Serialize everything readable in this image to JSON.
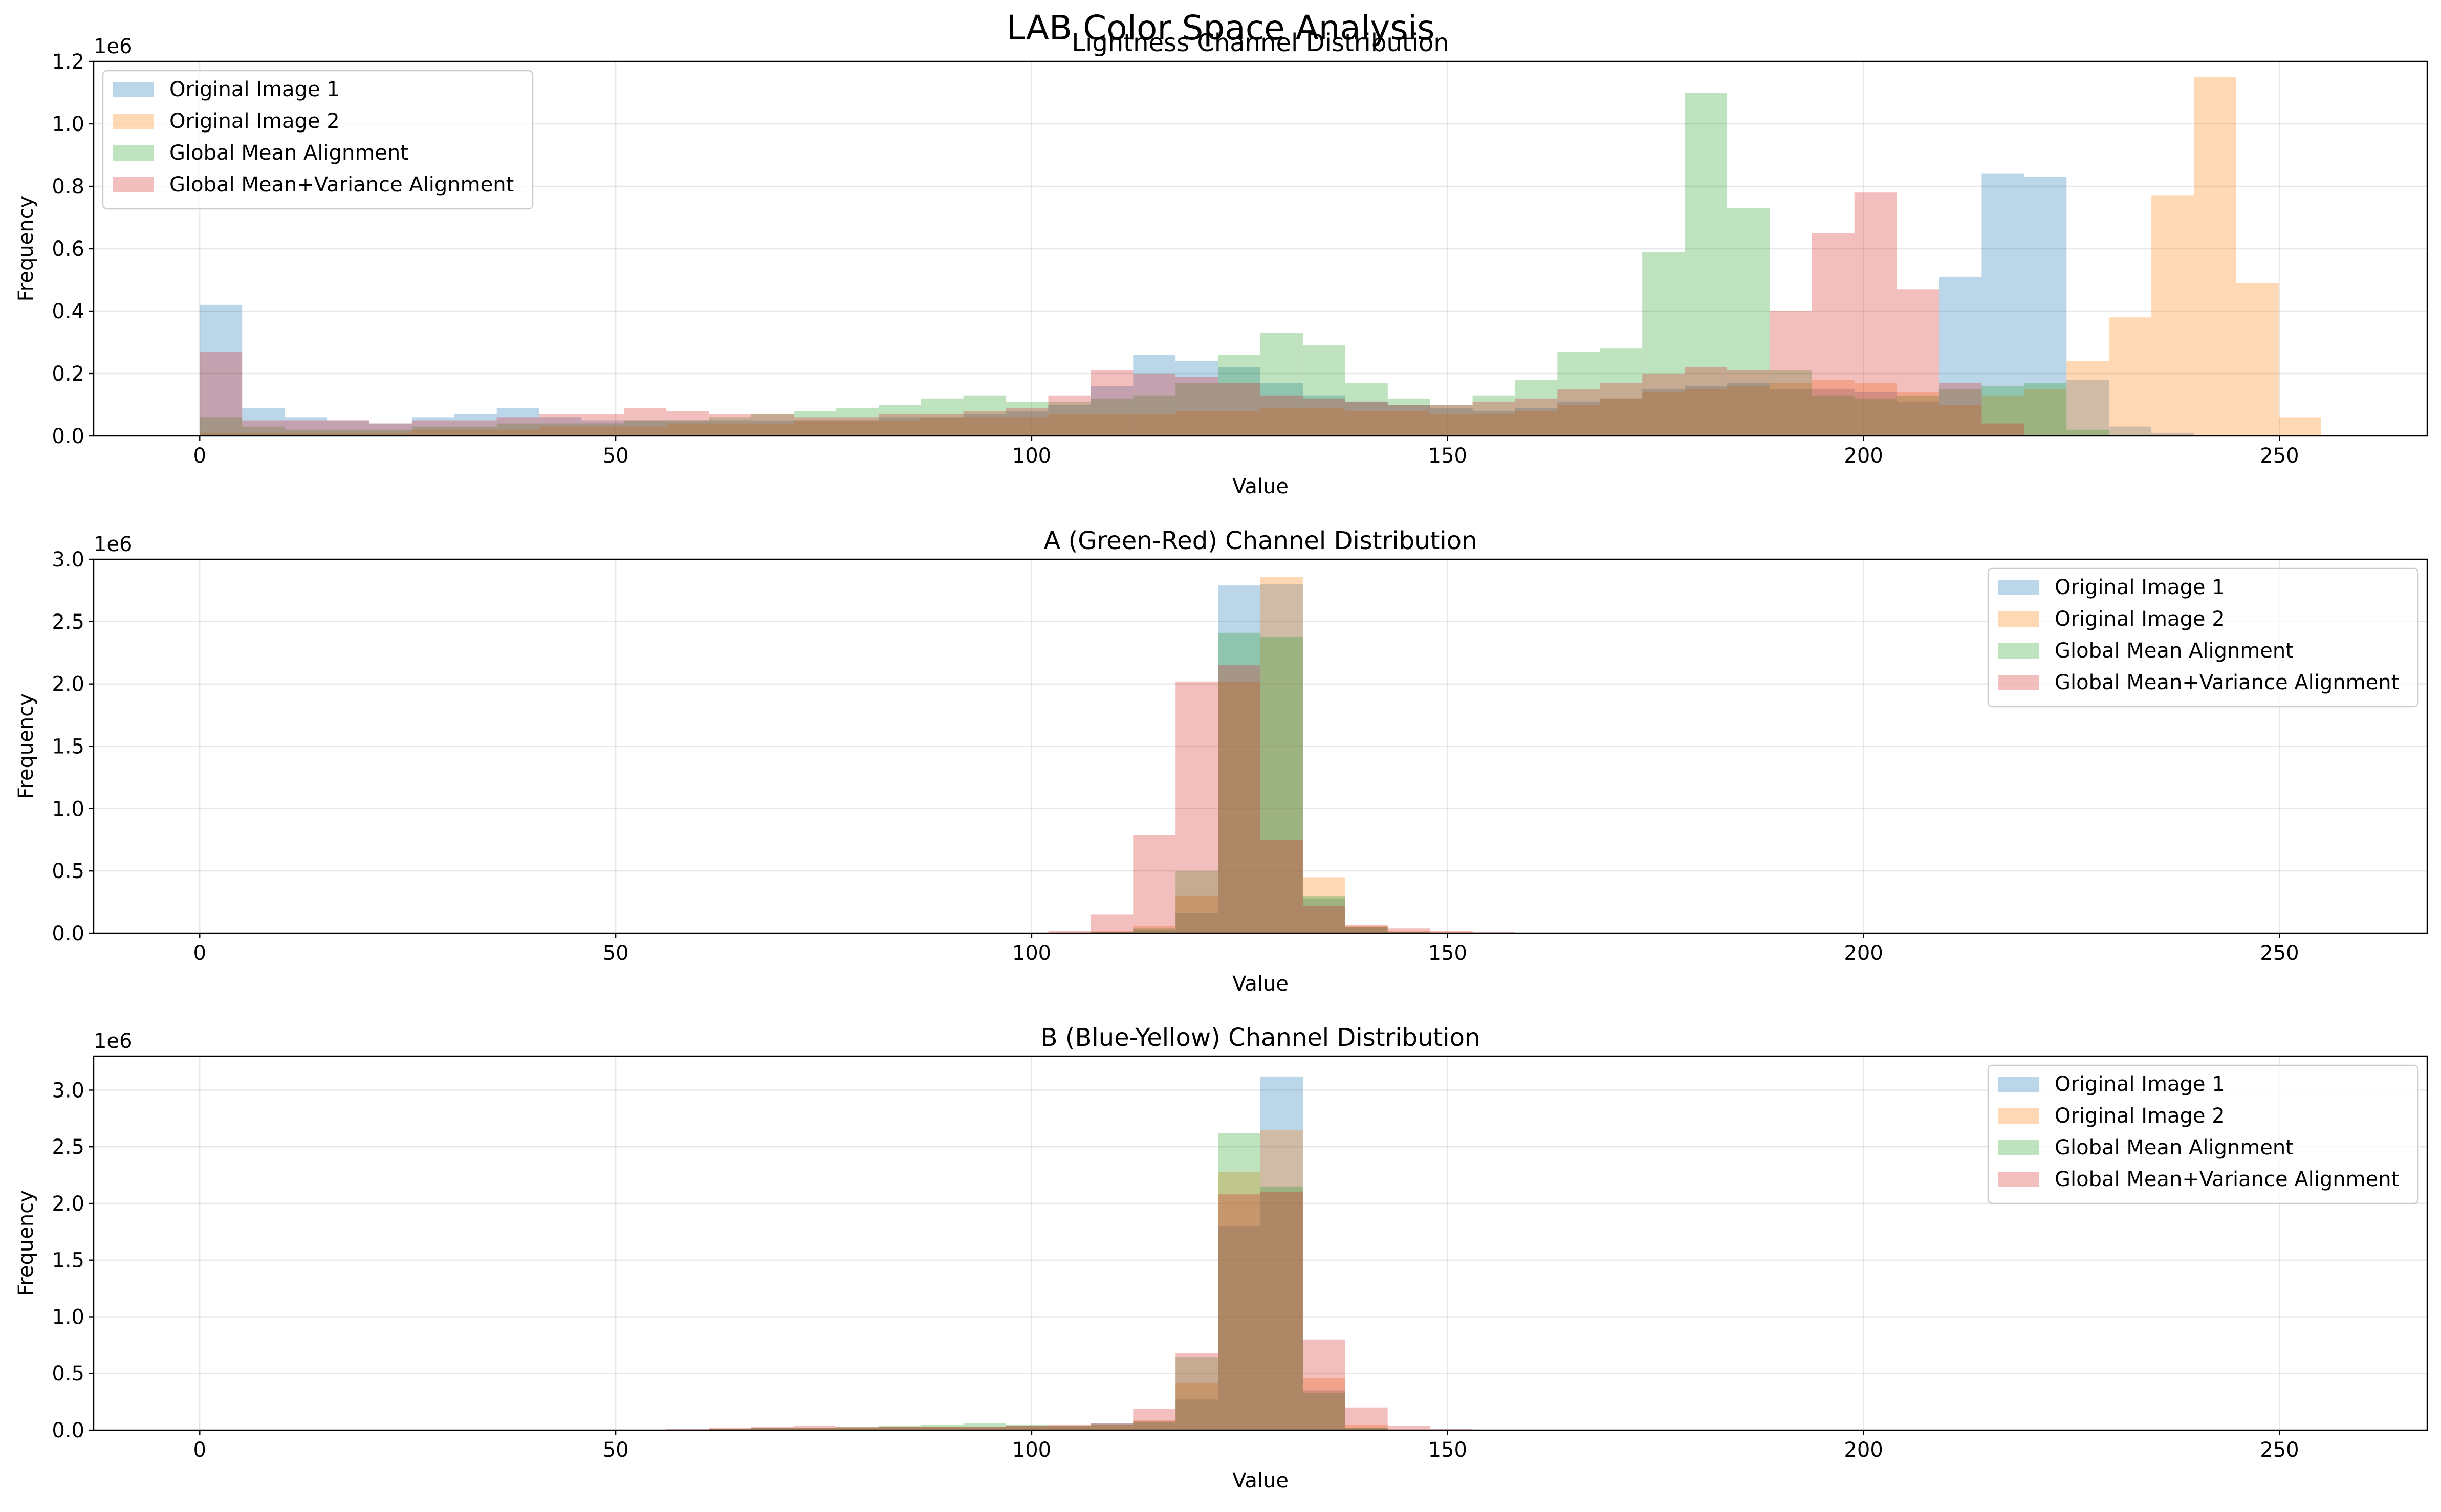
{
  "suptitle": "LAB Color Space Analysis",
  "colors": {
    "Original Image 1": "#1f77b4",
    "Original Image 2": "#ff7f0e",
    "Global Mean Alignment": "#2ca02c",
    "Global Mean+Variance Alignment": "#d62728"
  },
  "chart_data": [
    {
      "type": "bar",
      "histogram": true,
      "title": "Lightness Channel Distribution",
      "xlabel": "Value",
      "ylabel": "Frequency",
      "y_offset_label": "1e6",
      "xlim": [
        -12.75,
        267.75
      ],
      "ylim": [
        0,
        1.2
      ],
      "xticks": [
        0,
        50,
        100,
        150,
        200,
        250
      ],
      "yticks": [
        0.0,
        0.2,
        0.4,
        0.6,
        0.8,
        1.0,
        1.2
      ],
      "ytick_labels": [
        "0.0",
        "0.2",
        "0.4",
        "0.6",
        "0.8",
        "1.0",
        "1.2"
      ],
      "legend_position": "upper-left",
      "grid": true,
      "bin_width": 5.1,
      "bin_start": 0,
      "series": [
        {
          "name": "Original Image 1",
          "values": [
            0.42,
            0.09,
            0.06,
            0.05,
            0.04,
            0.06,
            0.07,
            0.09,
            0.06,
            0.05,
            0.05,
            0.05,
            0.05,
            0.05,
            0.05,
            0.05,
            0.06,
            0.06,
            0.07,
            0.08,
            0.1,
            0.16,
            0.26,
            0.24,
            0.22,
            0.17,
            0.13,
            0.11,
            0.1,
            0.09,
            0.08,
            0.09,
            0.11,
            0.12,
            0.15,
            0.16,
            0.17,
            0.15,
            0.15,
            0.14,
            0.11,
            0.51,
            0.84,
            0.83,
            0.18,
            0.03,
            0.01,
            0,
            0,
            0,
            0
          ]
        },
        {
          "name": "Original Image 2",
          "values": [
            0.01,
            0.01,
            0.01,
            0.01,
            0.01,
            0.02,
            0.02,
            0.02,
            0.03,
            0.03,
            0.03,
            0.04,
            0.04,
            0.04,
            0.05,
            0.05,
            0.05,
            0.06,
            0.06,
            0.06,
            0.07,
            0.07,
            0.07,
            0.08,
            0.08,
            0.09,
            0.09,
            0.08,
            0.08,
            0.07,
            0.07,
            0.08,
            0.1,
            0.12,
            0.14,
            0.15,
            0.16,
            0.17,
            0.18,
            0.17,
            0.14,
            0.1,
            0.13,
            0.15,
            0.24,
            0.38,
            0.77,
            1.15,
            0.49,
            0.06,
            0
          ]
        },
        {
          "name": "Global Mean Alignment",
          "values": [
            0.06,
            0.03,
            0.02,
            0.02,
            0.02,
            0.03,
            0.03,
            0.04,
            0.04,
            0.04,
            0.05,
            0.05,
            0.06,
            0.07,
            0.08,
            0.09,
            0.1,
            0.12,
            0.13,
            0.11,
            0.11,
            0.12,
            0.13,
            0.17,
            0.26,
            0.33,
            0.29,
            0.17,
            0.12,
            0.1,
            0.13,
            0.18,
            0.27,
            0.28,
            0.59,
            1.1,
            0.73,
            0.21,
            0.13,
            0.12,
            0.13,
            0.15,
            0.16,
            0.17,
            0.02,
            0,
            0,
            0,
            0,
            0,
            0
          ]
        },
        {
          "name": "Global Mean+Variance Alignment",
          "values": [
            0.27,
            0.05,
            0.05,
            0.05,
            0.04,
            0.05,
            0.05,
            0.06,
            0.07,
            0.07,
            0.09,
            0.08,
            0.07,
            0.07,
            0.06,
            0.06,
            0.07,
            0.07,
            0.08,
            0.09,
            0.13,
            0.21,
            0.2,
            0.19,
            0.17,
            0.13,
            0.12,
            0.11,
            0.1,
            0.1,
            0.11,
            0.12,
            0.15,
            0.17,
            0.2,
            0.22,
            0.21,
            0.4,
            0.65,
            0.78,
            0.47,
            0.17,
            0.04,
            0,
            0,
            0,
            0,
            0,
            0,
            0,
            0
          ]
        }
      ]
    },
    {
      "type": "bar",
      "histogram": true,
      "title": "A (Green-Red) Channel Distribution",
      "xlabel": "Value",
      "ylabel": "Frequency",
      "y_offset_label": "1e6",
      "xlim": [
        -12.75,
        267.75
      ],
      "ylim": [
        0,
        3.0
      ],
      "xticks": [
        0,
        50,
        100,
        150,
        200,
        250
      ],
      "yticks": [
        0.0,
        0.5,
        1.0,
        1.5,
        2.0,
        2.5,
        3.0
      ],
      "ytick_labels": [
        "0.0",
        "0.5",
        "1.0",
        "1.5",
        "2.0",
        "2.5",
        "3.0"
      ],
      "legend_position": "upper-right",
      "grid": true,
      "bin_width": 5.1,
      "bin_start": 0,
      "series": [
        {
          "name": "Original Image 1",
          "values": [
            0,
            0,
            0,
            0,
            0,
            0,
            0,
            0,
            0,
            0,
            0,
            0,
            0,
            0,
            0,
            0,
            0,
            0,
            0,
            0,
            0,
            0.01,
            0.03,
            0.16,
            2.79,
            2.8,
            0.28,
            0.05,
            0.01,
            0,
            0,
            0,
            0,
            0,
            0,
            0,
            0,
            0,
            0,
            0,
            0,
            0,
            0,
            0,
            0,
            0,
            0,
            0,
            0,
            0,
            0
          ]
        },
        {
          "name": "Original Image 2",
          "values": [
            0,
            0,
            0,
            0,
            0,
            0,
            0,
            0,
            0,
            0,
            0,
            0,
            0,
            0,
            0,
            0,
            0,
            0,
            0,
            0,
            0,
            0.02,
            0.06,
            0.3,
            2.02,
            2.86,
            0.45,
            0.06,
            0.02,
            0.01,
            0,
            0,
            0,
            0,
            0,
            0,
            0,
            0,
            0,
            0,
            0,
            0,
            0,
            0,
            0,
            0,
            0,
            0,
            0,
            0,
            0
          ]
        },
        {
          "name": "Global Mean Alignment",
          "values": [
            0,
            0,
            0,
            0,
            0,
            0,
            0,
            0,
            0,
            0,
            0,
            0,
            0,
            0,
            0,
            0,
            0,
            0,
            0,
            0,
            0,
            0.01,
            0.04,
            0.5,
            2.41,
            2.38,
            0.3,
            0.05,
            0.01,
            0,
            0,
            0,
            0,
            0,
            0,
            0,
            0,
            0,
            0,
            0,
            0,
            0,
            0,
            0,
            0,
            0,
            0,
            0,
            0,
            0,
            0
          ]
        },
        {
          "name": "Global Mean+Variance Alignment",
          "values": [
            0,
            0,
            0,
            0,
            0,
            0,
            0,
            0,
            0,
            0,
            0,
            0,
            0,
            0,
            0,
            0,
            0,
            0,
            0,
            0,
            0.02,
            0.15,
            0.79,
            2.02,
            2.15,
            0.75,
            0.22,
            0.07,
            0.04,
            0.02,
            0.01,
            0,
            0,
            0,
            0,
            0,
            0,
            0,
            0,
            0,
            0,
            0,
            0,
            0,
            0,
            0,
            0,
            0,
            0,
            0,
            0
          ]
        }
      ]
    },
    {
      "type": "bar",
      "histogram": true,
      "title": "B (Blue-Yellow) Channel Distribution",
      "xlabel": "Value",
      "ylabel": "Frequency",
      "y_offset_label": "1e6",
      "xlim": [
        -12.75,
        267.75
      ],
      "ylim": [
        0,
        3.3
      ],
      "xticks": [
        0,
        50,
        100,
        150,
        200,
        250
      ],
      "yticks": [
        0.0,
        0.5,
        1.0,
        1.5,
        2.0,
        2.5,
        3.0
      ],
      "ytick_labels": [
        "0.0",
        "0.5",
        "1.0",
        "1.5",
        "2.0",
        "2.5",
        "3.0"
      ],
      "legend_position": "upper-right",
      "grid": true,
      "bin_width": 5.1,
      "bin_start": 0,
      "series": [
        {
          "name": "Original Image 1",
          "values": [
            0,
            0,
            0,
            0,
            0,
            0,
            0,
            0,
            0,
            0,
            0,
            0,
            0.01,
            0.02,
            0.02,
            0.02,
            0.03,
            0.03,
            0.03,
            0.04,
            0.04,
            0.06,
            0.08,
            0.27,
            1.8,
            3.12,
            0.35,
            0.02,
            0,
            0,
            0,
            0,
            0,
            0,
            0,
            0,
            0,
            0,
            0,
            0,
            0,
            0,
            0,
            0,
            0,
            0,
            0,
            0,
            0,
            0,
            0
          ]
        },
        {
          "name": "Original Image 2",
          "values": [
            0,
            0,
            0,
            0,
            0,
            0,
            0,
            0,
            0,
            0,
            0,
            0,
            0.01,
            0.02,
            0.02,
            0.02,
            0.03,
            0.03,
            0.03,
            0.04,
            0.04,
            0.05,
            0.09,
            0.42,
            2.28,
            2.65,
            0.46,
            0.05,
            0,
            0,
            0,
            0,
            0,
            0,
            0,
            0,
            0,
            0,
            0,
            0,
            0,
            0,
            0,
            0,
            0,
            0,
            0,
            0,
            0,
            0,
            0
          ]
        },
        {
          "name": "Global Mean Alignment",
          "values": [
            0,
            0,
            0,
            0,
            0,
            0,
            0,
            0,
            0,
            0,
            0,
            0,
            0.01,
            0.02,
            0.02,
            0.03,
            0.04,
            0.05,
            0.06,
            0.05,
            0.04,
            0.05,
            0.07,
            0.64,
            2.62,
            2.15,
            0.33,
            0.02,
            0,
            0,
            0,
            0,
            0,
            0,
            0,
            0,
            0,
            0,
            0,
            0,
            0,
            0,
            0,
            0,
            0,
            0,
            0,
            0,
            0,
            0,
            0
          ]
        },
        {
          "name": "Global Mean+Variance Alignment",
          "values": [
            0,
            0,
            0,
            0,
            0,
            0,
            0,
            0,
            0,
            0,
            0,
            0.01,
            0.02,
            0.03,
            0.04,
            0.03,
            0.03,
            0.03,
            0.03,
            0.04,
            0.05,
            0.06,
            0.19,
            0.68,
            2.08,
            2.1,
            0.8,
            0.2,
            0.04,
            0.01,
            0,
            0,
            0,
            0,
            0,
            0,
            0,
            0,
            0,
            0,
            0,
            0,
            0,
            0,
            0,
            0,
            0,
            0,
            0,
            0,
            0
          ]
        }
      ]
    }
  ]
}
